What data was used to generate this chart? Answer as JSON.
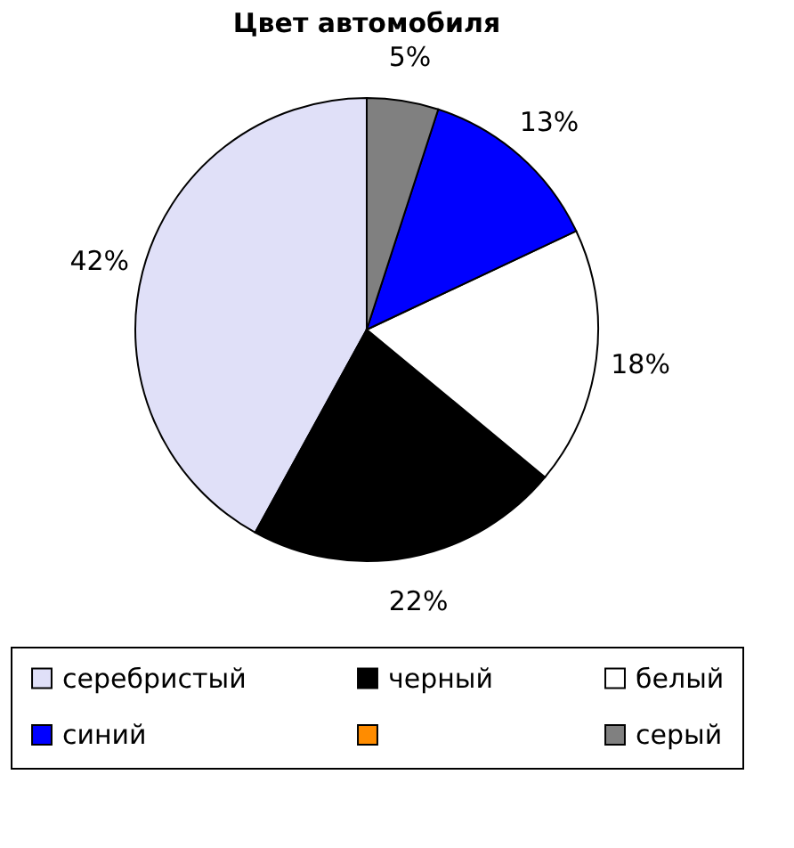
{
  "chart_data": {
    "type": "pie",
    "title": "Цвет автомобиля",
    "categories": [
      "серебристый",
      "черный",
      "белый",
      "синий",
      null,
      "серый"
    ],
    "values": [
      42,
      22,
      18,
      13,
      0,
      5
    ],
    "value_labels": [
      "42%",
      "22%",
      "18%",
      "13%",
      null,
      "5%"
    ],
    "colors": [
      "#e0e0f8",
      "#000000",
      "#ffffff",
      "#0000ff",
      "#ff8c00",
      "#808080"
    ],
    "legend": "bottom"
  }
}
